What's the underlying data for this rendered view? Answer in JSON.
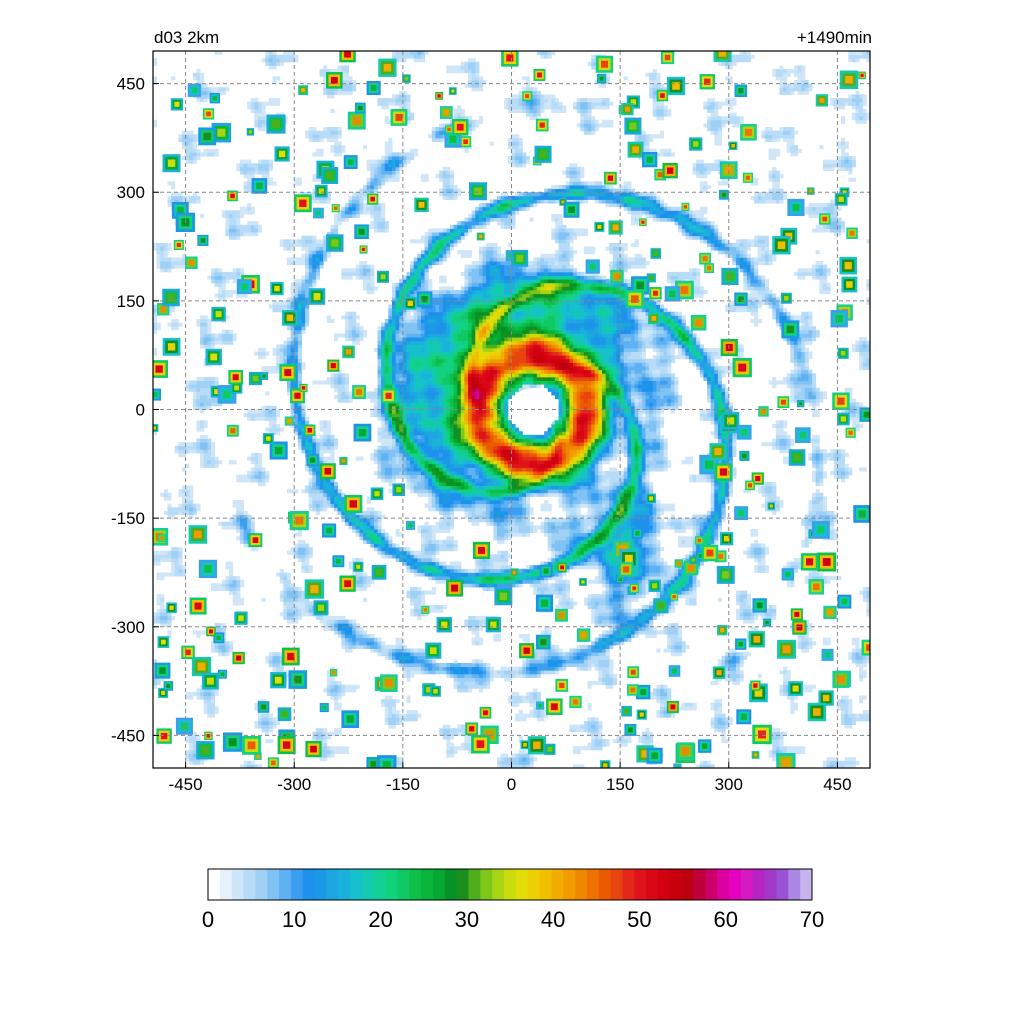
{
  "chart_data": {
    "type": "heatmap",
    "title_left": "d03 2km",
    "title_right": "+1490min",
    "xlabel": "",
    "ylabel": "",
    "xlim": [
      -495,
      495
    ],
    "ylim": [
      -495,
      495
    ],
    "x_ticks": [
      -450,
      -300,
      -150,
      0,
      150,
      300,
      450
    ],
    "y_ticks": [
      450,
      300,
      150,
      0,
      -150,
      -300,
      -450
    ],
    "grid": true,
    "colorbar": {
      "min": 0,
      "max": 70,
      "ticks": [
        0,
        10,
        20,
        30,
        40,
        50,
        60,
        70
      ],
      "colors": [
        "#ffffff",
        "#e6f2fb",
        "#cfe6f8",
        "#b8dcf7",
        "#9fd0f5",
        "#80c2f3",
        "#5eb1f2",
        "#3b9ff0",
        "#1e90ee",
        "#1a99e6",
        "#1ea6e0",
        "#19b2db",
        "#16c0cc",
        "#13c9b0",
        "#12cf96",
        "#12d17c",
        "#10c965",
        "#0dbf48",
        "#08b53a",
        "#06a832",
        "#069227",
        "#1a8f1d",
        "#4fae1c",
        "#7ec61a",
        "#a9d414",
        "#cbdc0e",
        "#e2dc09",
        "#ecd004",
        "#f0c000",
        "#f2ae00",
        "#f29b00",
        "#f08700",
        "#ee7200",
        "#ec5a00",
        "#e84410",
        "#e3281a",
        "#df141a",
        "#d90715",
        "#d20010",
        "#c8000c",
        "#bc000f",
        "#c0003a",
        "#cc006a",
        "#dc00a0",
        "#e600c0",
        "#d41ac0",
        "#b824c4",
        "#a238c8",
        "#9a52d4",
        "#a888e0",
        "#c8b4ec"
      ]
    },
    "features": {
      "eye_center": [
        30,
        0
      ],
      "eye_radius_km": 35,
      "note": "simulated tropical cyclone reflectivity field"
    }
  }
}
